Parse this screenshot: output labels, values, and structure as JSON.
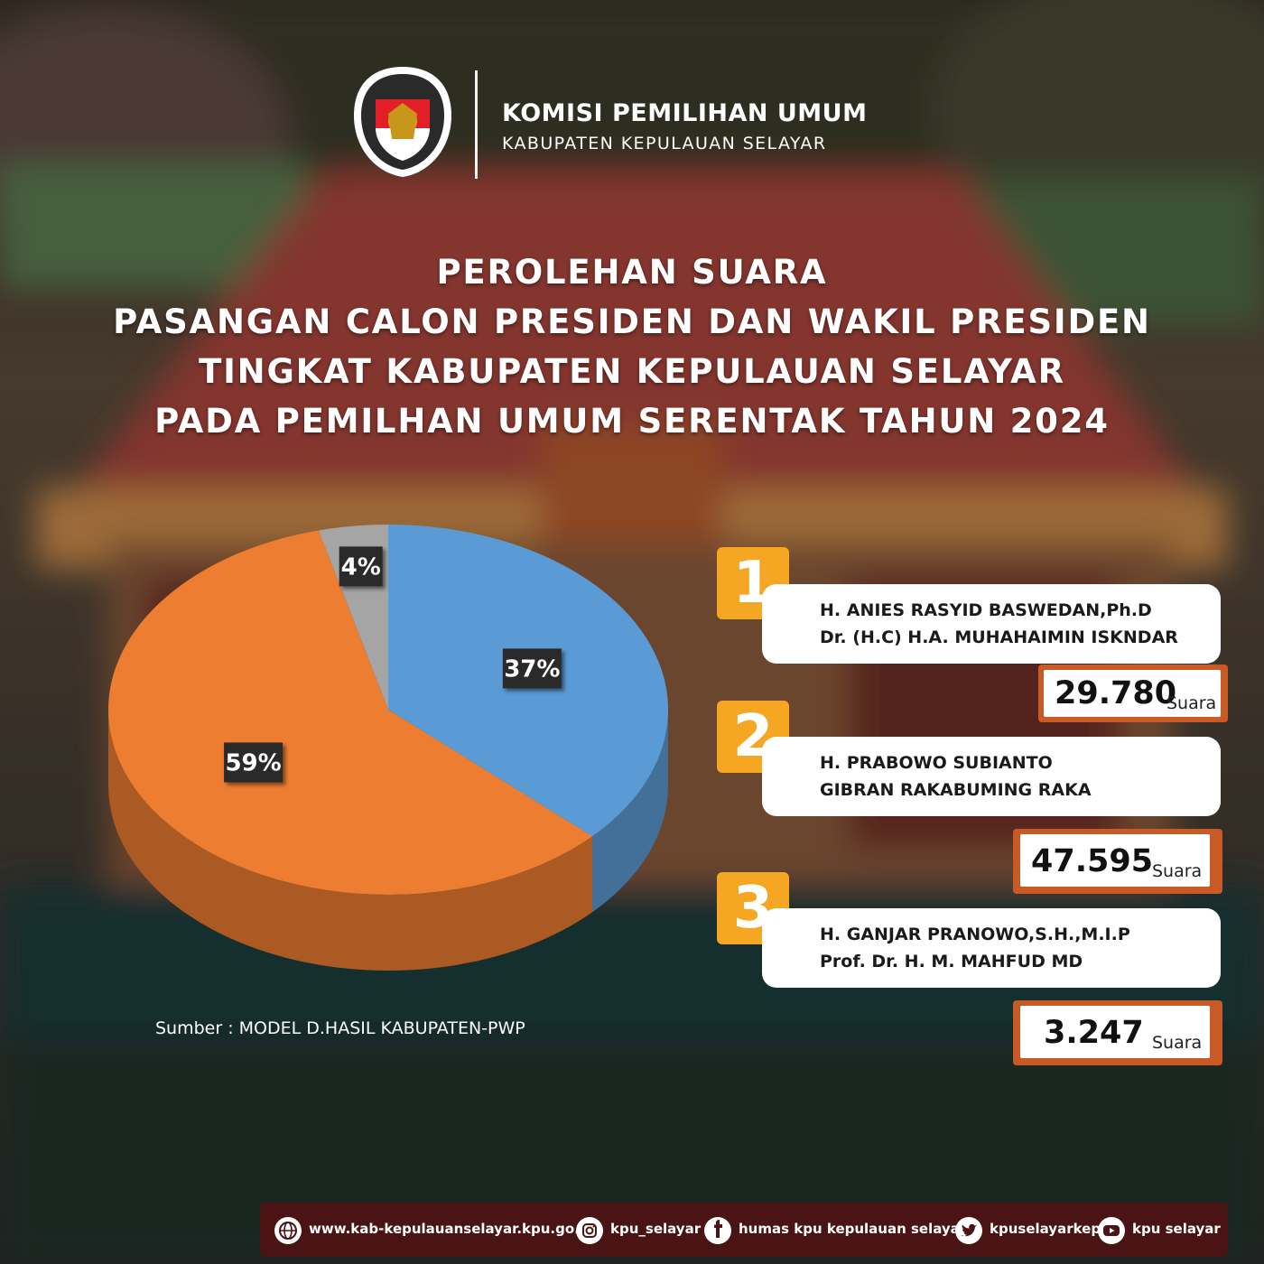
{
  "header": {
    "logo_text": "KOMISI PEMILIHAN UMUM",
    "org_name": "KOMISI PEMILIHAN UMUM",
    "org_sub": "KABUPATEN KEPULAUAN SELAYAR"
  },
  "title_lines": [
    "PEROLEHAN SUARA",
    "PASANGAN CALON PRESIDEN DAN WAKIL PRESIDEN",
    "TINGKAT KABUPATEN KEPULAUAN SELAYAR",
    "PADA PEMILHAN UMUM SERENTAK TAHUN 2024"
  ],
  "chart_data": {
    "type": "pie",
    "title": "",
    "slices": [
      {
        "label": "37%",
        "value": 37,
        "color": "#5b9bd5"
      },
      {
        "label": "59%",
        "value": 59,
        "color": "#ed7d31"
      },
      {
        "label": "4%",
        "value": 4,
        "color": "#a5a5a5"
      }
    ]
  },
  "source": "Sumber : MODEL D.HASIL KABUPATEN-PWP",
  "candidates": [
    {
      "number": "1",
      "line1": "H. ANIES RASYID BASWEDAN,Ph.D",
      "line2": "Dr. (H.C) H.A. MUHAHAIMIN ISKNDAR",
      "votes": "29.780",
      "unit": "Suara"
    },
    {
      "number": "2",
      "line1": "H. PRABOWO SUBIANTO",
      "line2": "GIBRAN RAKABUMING RAKA",
      "votes": "47.595",
      "unit": "Suara"
    },
    {
      "number": "3",
      "line1": "H. GANJAR PRANOWO,S.H.,M.I.P",
      "line2": "Prof. Dr. H. M. MAHFUD MD",
      "votes": "3.247",
      "unit": "Suara"
    }
  ],
  "footer": {
    "website": "www.kab-kepulauanselayar.kpu.go.id",
    "instagram": "kpu_selayar",
    "facebook": "humas kpu kepulauan selayar",
    "twitter": "kpuselayarkep",
    "youtube": "kpu selayar"
  },
  "colors": {
    "accent_orange": "#f5a623",
    "vote_border": "#c85a25",
    "footer_bar": "#4a1414"
  }
}
